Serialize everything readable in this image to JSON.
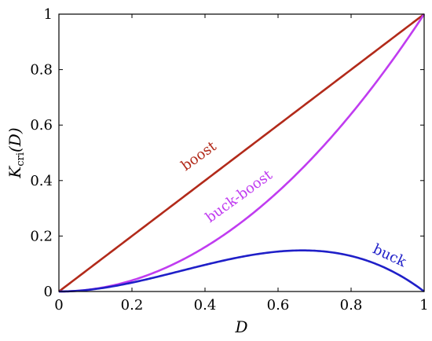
{
  "chart_data": {
    "type": "line",
    "title": "",
    "xlabel": "D",
    "ylabel_main": "K",
    "ylabel_sub": "cri",
    "ylabel_arg": "(D)",
    "xlim": [
      0,
      1
    ],
    "ylim": [
      0,
      1
    ],
    "xticks": [
      "0",
      "0.2",
      "0.4",
      "0.6",
      "0.8",
      "1"
    ],
    "yticks": [
      "0",
      "0.2",
      "0.4",
      "0.6",
      "0.8",
      "1"
    ],
    "grid": false,
    "legend": "none",
    "series": [
      {
        "name": "boost",
        "color": "#b22a1a",
        "x": [
          0,
          0.1,
          0.2,
          0.3,
          0.4,
          0.5,
          0.6,
          0.7,
          0.8,
          0.9,
          1
        ],
        "y": [
          0,
          0.1,
          0.2,
          0.3,
          0.4,
          0.5,
          0.6,
          0.7,
          0.8,
          0.9,
          1
        ]
      },
      {
        "name": "buck-boost",
        "color": "#c03cf0",
        "x": [
          0,
          0.1,
          0.2,
          0.3,
          0.4,
          0.5,
          0.6,
          0.7,
          0.8,
          0.9,
          1
        ],
        "y": [
          0,
          0.01,
          0.04,
          0.09,
          0.16,
          0.25,
          0.36,
          0.49,
          0.64,
          0.81,
          1
        ]
      },
      {
        "name": "buck",
        "color": "#1f1fc8",
        "x": [
          0,
          0.1,
          0.2,
          0.3,
          0.4,
          0.5,
          0.6,
          0.667,
          0.7,
          0.8,
          0.9,
          1
        ],
        "y": [
          0,
          0.009,
          0.032,
          0.063,
          0.096,
          0.125,
          0.144,
          0.148,
          0.147,
          0.128,
          0.081,
          0
        ]
      }
    ],
    "annotations": [
      {
        "text": "boost",
        "x": 0.39,
        "y": 0.475,
        "series": 0,
        "rotate": -36
      },
      {
        "text": "buck-boost",
        "x": 0.5,
        "y": 0.33,
        "series": 1,
        "rotate": -36
      },
      {
        "text": "buck",
        "x": 0.9,
        "y": 0.115,
        "series": 2,
        "rotate": 25
      }
    ]
  }
}
